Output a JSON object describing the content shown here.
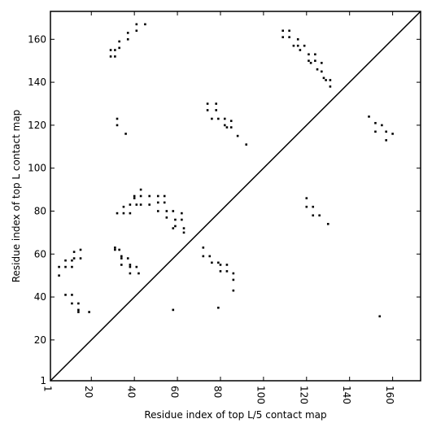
{
  "chart_data": {
    "type": "scatter",
    "xlabel": "Residue index of top L/5 contact map",
    "ylabel": "Residue index of top L contact map",
    "xlim": [
      1,
      173
    ],
    "ylim": [
      1,
      173
    ],
    "xticks": [
      1,
      20,
      40,
      60,
      80,
      100,
      120,
      140,
      160
    ],
    "yticks": [
      1,
      20,
      40,
      60,
      80,
      100,
      120,
      140,
      160
    ],
    "x_tick_labels": [
      "1",
      "20",
      "40",
      "60",
      "80",
      "100",
      "120",
      "140",
      "160"
    ],
    "y_tick_labels": [
      "1",
      "20",
      "40",
      "60",
      "80",
      "100",
      "120",
      "140",
      "160"
    ],
    "diagonal": true,
    "marker_color": "#000000",
    "points": [
      [
        29,
        155
      ],
      [
        29,
        152
      ],
      [
        31,
        155
      ],
      [
        31,
        152
      ],
      [
        33,
        159
      ],
      [
        33,
        156
      ],
      [
        37,
        163
      ],
      [
        37,
        160
      ],
      [
        41,
        167
      ],
      [
        41,
        164
      ],
      [
        45,
        167
      ],
      [
        109,
        164
      ],
      [
        109,
        161
      ],
      [
        112,
        164
      ],
      [
        112,
        161
      ],
      [
        114,
        157
      ],
      [
        116,
        160
      ],
      [
        116,
        157
      ],
      [
        119,
        157
      ],
      [
        121,
        153
      ],
      [
        121,
        150
      ],
      [
        124,
        153
      ],
      [
        124,
        150
      ],
      [
        127,
        149
      ],
      [
        127,
        145
      ],
      [
        129,
        141
      ],
      [
        131,
        141
      ],
      [
        131,
        138
      ],
      [
        117,
        155
      ],
      [
        122,
        149
      ],
      [
        125,
        146
      ],
      [
        128,
        142
      ],
      [
        74,
        130
      ],
      [
        74,
        127
      ],
      [
        78,
        130
      ],
      [
        78,
        127
      ],
      [
        76,
        123
      ],
      [
        79,
        123
      ],
      [
        82,
        123
      ],
      [
        82,
        120
      ],
      [
        85,
        122
      ],
      [
        85,
        119
      ],
      [
        88,
        115
      ],
      [
        92,
        111
      ],
      [
        83,
        119
      ],
      [
        32,
        123
      ],
      [
        32,
        120
      ],
      [
        36,
        116
      ],
      [
        149,
        124
      ],
      [
        152,
        121
      ],
      [
        152,
        117
      ],
      [
        155,
        120
      ],
      [
        157,
        117
      ],
      [
        157,
        113
      ],
      [
        160,
        116
      ],
      [
        154,
        31
      ],
      [
        32,
        79
      ],
      [
        35,
        82
      ],
      [
        35,
        79
      ],
      [
        38,
        83
      ],
      [
        38,
        79
      ],
      [
        40,
        87
      ],
      [
        40,
        86
      ],
      [
        43,
        90
      ],
      [
        43,
        87
      ],
      [
        43,
        83
      ],
      [
        47,
        87
      ],
      [
        51,
        87
      ],
      [
        51,
        84
      ],
      [
        54,
        87
      ],
      [
        54,
        84
      ],
      [
        51,
        80
      ],
      [
        55,
        80
      ],
      [
        55,
        77
      ],
      [
        58,
        80
      ],
      [
        59,
        76
      ],
      [
        59,
        73
      ],
      [
        62,
        79
      ],
      [
        62,
        76
      ],
      [
        63,
        72
      ],
      [
        63,
        70
      ],
      [
        47,
        83
      ],
      [
        58,
        72
      ],
      [
        41,
        83
      ],
      [
        72,
        63
      ],
      [
        72,
        59
      ],
      [
        75,
        59
      ],
      [
        76,
        56
      ],
      [
        79,
        56
      ],
      [
        80,
        55
      ],
      [
        80,
        52
      ],
      [
        83,
        55
      ],
      [
        83,
        52
      ],
      [
        86,
        51
      ],
      [
        86,
        48
      ],
      [
        86,
        43
      ],
      [
        79,
        35
      ],
      [
        120,
        86
      ],
      [
        120,
        82
      ],
      [
        123,
        82
      ],
      [
        123,
        78
      ],
      [
        126,
        78
      ],
      [
        130,
        74
      ],
      [
        31,
        63
      ],
      [
        31,
        62
      ],
      [
        33,
        62
      ],
      [
        34,
        59
      ],
      [
        34,
        58
      ],
      [
        34,
        55
      ],
      [
        37,
        58
      ],
      [
        38,
        55
      ],
      [
        38,
        54
      ],
      [
        38,
        51
      ],
      [
        41,
        54
      ],
      [
        42,
        51
      ],
      [
        5,
        54
      ],
      [
        5,
        50
      ],
      [
        8,
        57
      ],
      [
        8,
        54
      ],
      [
        11,
        57
      ],
      [
        11,
        54
      ],
      [
        12,
        61
      ],
      [
        12,
        58
      ],
      [
        15,
        62
      ],
      [
        15,
        58
      ],
      [
        8,
        41
      ],
      [
        11,
        41
      ],
      [
        11,
        37
      ],
      [
        14,
        37
      ],
      [
        14,
        34
      ],
      [
        14,
        33
      ],
      [
        19,
        33
      ],
      [
        58,
        34
      ]
    ]
  }
}
